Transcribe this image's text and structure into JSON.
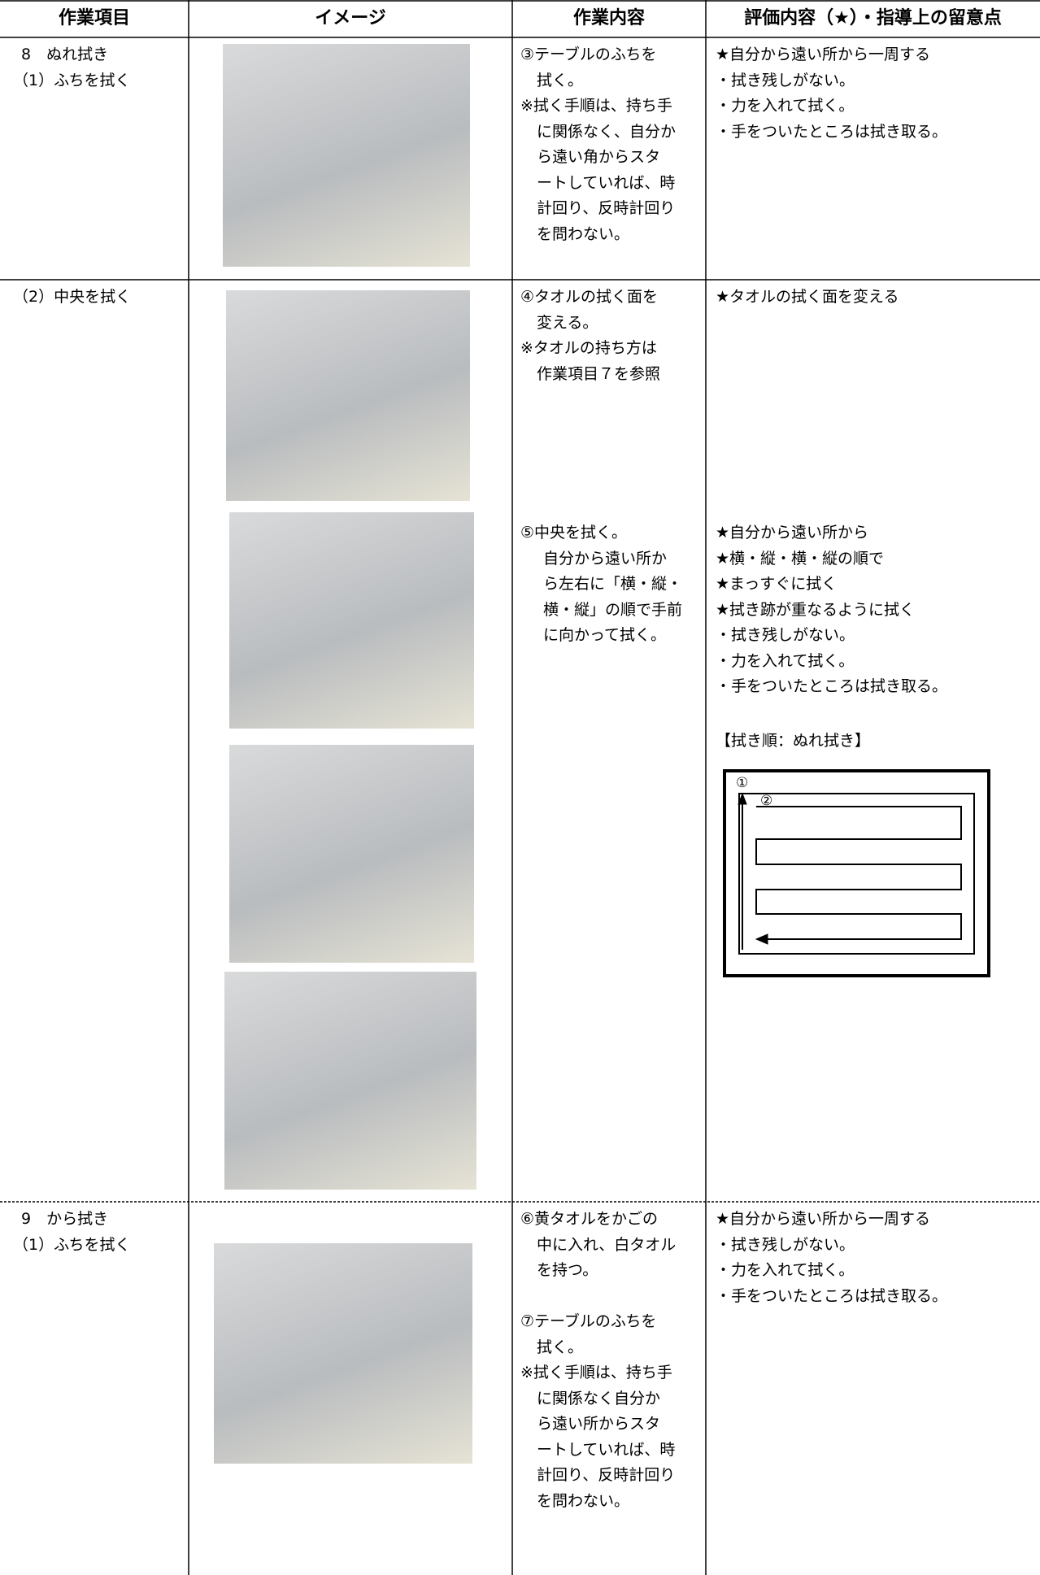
{
  "table": {
    "header": [
      "作業項目",
      "イメージ",
      "作業内容",
      "評価内容（★）・指導上の留意点"
    ],
    "rows": [
      {
        "item": [
          "8　ぬれ拭き",
          "（1）ふちを拭く"
        ],
        "content": [
          [
            "③テーブルのふちを",
            "拭く。",
            "※拭く手順は、持ち手",
            "に関係なく、自分か",
            "ら遠い角からスタ",
            "ートしていれば、時",
            "計回り、反時計回り",
            "を問わない。"
          ]
        ],
        "evaluation": [
          [
            "★自分から遠い所から一周する",
            "・拭き残しがない。",
            "・力を入れて拭く。",
            "・手をついたところは拭き取る。"
          ]
        ]
      },
      {
        "item": [
          "（2）中央を拭く"
        ],
        "content": [
          [
            "④タオルの拭く面を",
            "変える。",
            "※タオルの持ち方は",
            "作業項目７を参照"
          ],
          [
            "⑤中央を拭く。",
            "自分から遠い所か",
            "ら左右に「横・縦・",
            "横・縦」の順で手前",
            "に向かって拭く。"
          ]
        ],
        "evaluation": [
          [
            "★タオルの拭く面を変える"
          ],
          [
            "★自分から遠い所から",
            "★横・縦・横・縦の順で",
            "★まっすぐに拭く",
            "★拭き跡が重なるように拭く",
            "・拭き残しがない。",
            "・力を入れて拭く。",
            "・手をついたところは拭き取る。"
          ]
        ],
        "diagram": {
          "caption": "【拭き順：ぬれ拭き】",
          "labels": [
            "①",
            "②"
          ]
        }
      },
      {
        "item": [
          "9　から拭き",
          "（1）ふちを拭く"
        ],
        "content": [
          [
            "⑥黄タオルをかごの",
            "中に入れ、白タオル",
            "を持つ。",
            "",
            "⑦テーブルのふちを",
            "拭く。",
            "※拭く手順は、持ち手",
            "に関係なく自分か",
            "ら遠い所からスタ",
            "ートしていれば、時",
            "計回り、反時計回り",
            "を問わない。"
          ]
        ],
        "evaluation": [
          [
            "★自分から遠い所から一周する",
            "・拭き残しがない。",
            "・力を入れて拭く。",
            "・手をついたところは拭き取る。"
          ]
        ]
      }
    ]
  }
}
